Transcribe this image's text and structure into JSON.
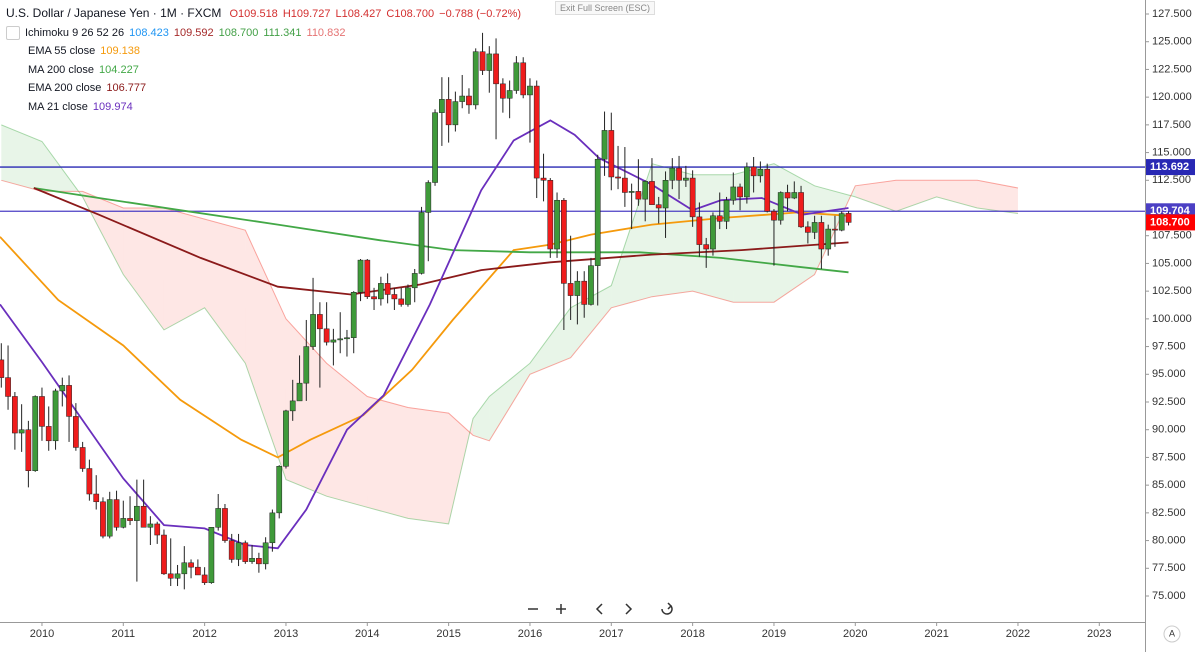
{
  "header": {
    "symbol": "U.S. Dollar / Japanese Yen · 1M · FXCM",
    "ohlc": [
      "O109.518",
      "H109.727",
      "L108.427",
      "C108.700"
    ],
    "change": "−0.788 (−0.72%)",
    "exit": "Exit Full Screen (ESC)",
    "corner": "A"
  },
  "chart_data": {
    "type": "candlestick",
    "up_color": "#3f9a3a",
    "down_color": "#ef1c1c",
    "xlim": [
      2009.484,
      2023.562
    ],
    "xticks": [
      2010,
      2011,
      2012,
      2013,
      2014,
      2015,
      2016,
      2017,
      2018,
      2019,
      2020,
      2021,
      2022,
      2023
    ],
    "ylim": [
      72.655,
      128.763
    ],
    "yticks": [
      {
        "value": 75,
        "label": "75.000"
      },
      {
        "value": 77.5,
        "label": "77.500"
      },
      {
        "value": 80,
        "label": "80.000"
      },
      {
        "value": 82.5,
        "label": "82.500"
      },
      {
        "value": 85,
        "label": "85.000"
      },
      {
        "value": 87.5,
        "label": "87.500"
      },
      {
        "value": 90,
        "label": "90.000"
      },
      {
        "value": 92.5,
        "label": "92.500"
      },
      {
        "value": 95,
        "label": "95.000"
      },
      {
        "value": 97.5,
        "label": "97.500"
      },
      {
        "value": 100,
        "label": "100.000"
      },
      {
        "value": 102.5,
        "label": "102.500"
      },
      {
        "value": 105,
        "label": "105.000"
      },
      {
        "value": 107.5,
        "label": "107.500"
      },
      {
        "value": 110,
        "label": "110.000"
      },
      {
        "value": 112.5,
        "label": "112.500"
      },
      {
        "value": 115,
        "label": "115.000"
      },
      {
        "value": 117.5,
        "label": "117.500"
      },
      {
        "value": 120,
        "label": "120.000"
      },
      {
        "value": 122.5,
        "label": "122.500"
      },
      {
        "value": 125,
        "label": "125.000"
      },
      {
        "value": 127.5,
        "label": "127.500"
      }
    ],
    "grid": false,
    "candles": [
      [
        2009.5,
        96.3,
        97.8,
        93.8,
        94.7
      ],
      [
        2009.583,
        94.7,
        97.6,
        91.8,
        93.0
      ],
      [
        2009.667,
        93.0,
        93.4,
        88.2,
        89.7
      ],
      [
        2009.75,
        89.7,
        92.3,
        88.0,
        90.0
      ],
      [
        2009.833,
        90.0,
        90.8,
        84.8,
        86.3
      ],
      [
        2009.917,
        86.3,
        93.1,
        86.2,
        93.0
      ],
      [
        2010,
        93.0,
        93.8,
        89.0,
        90.3
      ],
      [
        2010.083,
        90.3,
        92.1,
        88.1,
        89.0
      ],
      [
        2010.167,
        89.0,
        93.7,
        88.2,
        93.5
      ],
      [
        2010.25,
        93.5,
        94.7,
        92.1,
        94.0
      ],
      [
        2010.333,
        94.0,
        94.9,
        88.9,
        91.2
      ],
      [
        2010.417,
        91.2,
        92.4,
        88.1,
        88.4
      ],
      [
        2010.5,
        88.4,
        88.9,
        86.2,
        86.5
      ],
      [
        2010.583,
        86.5,
        87.3,
        83.6,
        84.2
      ],
      [
        2010.667,
        84.2,
        85.9,
        82.8,
        83.5
      ],
      [
        2010.75,
        83.5,
        83.9,
        80.2,
        80.4
      ],
      [
        2010.833,
        80.4,
        84.4,
        80.2,
        83.7
      ],
      [
        2010.917,
        83.7,
        84.5,
        80.9,
        81.2
      ],
      [
        2011,
        81.2,
        83.6,
        81.1,
        82.0
      ],
      [
        2011.083,
        82.0,
        84.0,
        81.4,
        81.8
      ],
      [
        2011.167,
        81.8,
        85.5,
        76.3,
        83.1
      ],
      [
        2011.25,
        83.1,
        85.5,
        81.3,
        81.2
      ],
      [
        2011.333,
        81.2,
        82.2,
        79.6,
        81.5
      ],
      [
        2011.417,
        81.5,
        81.7,
        79.7,
        80.5
      ],
      [
        2011.5,
        80.5,
        81.0,
        76.9,
        77.0
      ],
      [
        2011.583,
        77.0,
        80.2,
        75.9,
        76.6
      ],
      [
        2011.667,
        76.6,
        77.8,
        75.9,
        77.0
      ],
      [
        2011.75,
        77.0,
        79.5,
        75.6,
        78.0
      ],
      [
        2011.833,
        78.0,
        78.3,
        76.6,
        77.6
      ],
      [
        2011.917,
        77.6,
        78.3,
        76.9,
        76.9
      ],
      [
        2012,
        76.9,
        77.6,
        76.0,
        76.2
      ],
      [
        2012.083,
        76.2,
        81.2,
        76.1,
        81.2
      ],
      [
        2012.167,
        81.2,
        84.2,
        80.9,
        82.9
      ],
      [
        2012.25,
        82.9,
        83.3,
        79.8,
        80.0
      ],
      [
        2012.333,
        80.0,
        80.6,
        78.0,
        78.3
      ],
      [
        2012.417,
        78.3,
        80.6,
        77.7,
        79.8
      ],
      [
        2012.5,
        79.8,
        80.0,
        77.9,
        78.1
      ],
      [
        2012.583,
        78.1,
        79.6,
        77.9,
        78.4
      ],
      [
        2012.667,
        78.4,
        78.9,
        77.1,
        77.9
      ],
      [
        2012.75,
        77.9,
        80.3,
        77.4,
        79.8
      ],
      [
        2012.833,
        79.8,
        82.8,
        79.0,
        82.5
      ],
      [
        2012.917,
        82.5,
        86.8,
        82.0,
        86.7
      ],
      [
        2013,
        86.7,
        91.8,
        86.5,
        91.7
      ],
      [
        2013.083,
        91.7,
        94.5,
        90.8,
        92.6
      ],
      [
        2013.167,
        92.6,
        96.7,
        92.6,
        94.2
      ],
      [
        2013.25,
        94.2,
        99.9,
        92.6,
        97.5
      ],
      [
        2013.333,
        97.5,
        103.7,
        97.2,
        100.4
      ],
      [
        2013.417,
        100.4,
        101.5,
        93.8,
        99.1
      ],
      [
        2013.5,
        99.1,
        101.5,
        97.6,
        97.9
      ],
      [
        2013.583,
        97.9,
        99.1,
        95.8,
        98.1
      ],
      [
        2013.667,
        98.1,
        100.6,
        96.9,
        98.2
      ],
      [
        2013.75,
        98.2,
        99.0,
        96.6,
        98.3
      ],
      [
        2013.833,
        98.3,
        102.5,
        96.9,
        102.4
      ],
      [
        2013.917,
        102.4,
        105.4,
        101.6,
        105.3
      ],
      [
        2014,
        105.3,
        105.4,
        101.8,
        102.0
      ],
      [
        2014.083,
        102.0,
        102.8,
        100.8,
        101.8
      ],
      [
        2014.167,
        101.8,
        103.8,
        101.2,
        103.2
      ],
      [
        2014.25,
        103.2,
        104.1,
        101.4,
        102.2
      ],
      [
        2014.333,
        102.2,
        102.8,
        100.8,
        101.8
      ],
      [
        2014.417,
        101.8,
        102.8,
        101.1,
        101.3
      ],
      [
        2014.5,
        101.3,
        103.1,
        101.1,
        102.8
      ],
      [
        2014.583,
        102.8,
        104.5,
        101.5,
        104.1
      ],
      [
        2014.667,
        104.1,
        110.1,
        104.0,
        109.6
      ],
      [
        2014.75,
        109.6,
        112.5,
        105.2,
        112.3
      ],
      [
        2014.833,
        112.3,
        118.9,
        112.0,
        118.6
      ],
      [
        2014.917,
        118.6,
        121.8,
        115.6,
        119.8
      ],
      [
        2015,
        119.8,
        121.8,
        115.9,
        117.5
      ],
      [
        2015.083,
        117.5,
        120.5,
        116.9,
        119.6
      ],
      [
        2015.167,
        119.6,
        122.0,
        119.0,
        120.1
      ],
      [
        2015.25,
        120.1,
        120.8,
        118.5,
        119.3
      ],
      [
        2015.333,
        119.3,
        124.4,
        118.9,
        124.1
      ],
      [
        2015.417,
        124.1,
        125.8,
        122.0,
        122.4
      ],
      [
        2015.5,
        122.4,
        124.6,
        120.4,
        123.9
      ],
      [
        2015.583,
        123.9,
        125.3,
        116.2,
        121.2
      ],
      [
        2015.667,
        121.2,
        121.7,
        118.6,
        119.9
      ],
      [
        2015.75,
        119.9,
        121.5,
        118.1,
        120.6
      ],
      [
        2015.833,
        120.6,
        123.7,
        120.3,
        123.1
      ],
      [
        2015.917,
        123.1,
        123.6,
        119.9,
        120.2
      ],
      [
        2016,
        120.2,
        121.7,
        115.9,
        121.0
      ],
      [
        2016.083,
        121.0,
        121.5,
        110.9,
        112.7
      ],
      [
        2016.167,
        112.7,
        114.9,
        110.6,
        112.5
      ],
      [
        2016.25,
        112.5,
        112.7,
        105.5,
        106.3
      ],
      [
        2016.333,
        106.3,
        111.4,
        105.5,
        110.7
      ],
      [
        2016.417,
        110.7,
        110.9,
        99.0,
        103.2
      ],
      [
        2016.5,
        103.2,
        107.5,
        99.9,
        102.1
      ],
      [
        2016.583,
        102.1,
        104.3,
        99.5,
        103.4
      ],
      [
        2016.667,
        103.4,
        104.3,
        100.1,
        101.3
      ],
      [
        2016.75,
        101.3,
        105.5,
        101.2,
        104.8
      ],
      [
        2016.833,
        104.8,
        114.8,
        101.2,
        114.4
      ],
      [
        2016.917,
        114.4,
        118.7,
        112.9,
        117.0
      ],
      [
        2017,
        117.0,
        118.6,
        111.6,
        112.8
      ],
      [
        2017.083,
        112.8,
        115.6,
        111.7,
        112.7
      ],
      [
        2017.167,
        112.7,
        115.5,
        110.1,
        111.4
      ],
      [
        2017.25,
        111.4,
        112.2,
        108.1,
        111.5
      ],
      [
        2017.333,
        111.5,
        114.4,
        110.2,
        110.8
      ],
      [
        2017.417,
        110.8,
        112.5,
        108.8,
        112.4
      ],
      [
        2017.5,
        112.4,
        114.5,
        110.6,
        110.3
      ],
      [
        2017.583,
        110.3,
        111.0,
        108.6,
        110.0
      ],
      [
        2017.667,
        110.0,
        113.3,
        107.3,
        112.5
      ],
      [
        2017.75,
        112.5,
        114.5,
        111.7,
        113.6
      ],
      [
        2017.833,
        113.6,
        114.7,
        110.8,
        112.5
      ],
      [
        2017.917,
        112.5,
        113.8,
        111.9,
        112.7
      ],
      [
        2018,
        112.7,
        113.4,
        108.3,
        109.2
      ],
      [
        2018.083,
        109.2,
        110.5,
        105.6,
        106.7
      ],
      [
        2018.167,
        106.7,
        107.3,
        104.6,
        106.3
      ],
      [
        2018.25,
        106.3,
        109.6,
        105.7,
        109.3
      ],
      [
        2018.333,
        109.3,
        111.4,
        108.1,
        108.8
      ],
      [
        2018.417,
        108.8,
        111.0,
        108.1,
        110.7
      ],
      [
        2018.5,
        110.7,
        113.2,
        110.3,
        111.9
      ],
      [
        2018.583,
        111.9,
        112.2,
        109.8,
        111.0
      ],
      [
        2018.667,
        111.0,
        114.1,
        110.4,
        113.7
      ],
      [
        2018.75,
        113.7,
        114.6,
        111.4,
        112.9
      ],
      [
        2018.833,
        112.9,
        114.2,
        112.3,
        113.5
      ],
      [
        2018.917,
        113.5,
        114.0,
        109.6,
        109.7
      ],
      [
        2019,
        109.7,
        109.9,
        104.8,
        108.9
      ],
      [
        2019.083,
        108.9,
        111.5,
        108.5,
        111.4
      ],
      [
        2019.167,
        111.4,
        112.1,
        109.7,
        110.9
      ],
      [
        2019.25,
        110.9,
        112.4,
        110.8,
        111.4
      ],
      [
        2019.333,
        111.4,
        112.0,
        108.2,
        108.3
      ],
      [
        2019.417,
        108.3,
        108.8,
        106.8,
        107.8
      ],
      [
        2019.5,
        107.8,
        109.3,
        107.2,
        108.7
      ],
      [
        2019.583,
        108.7,
        109.3,
        104.5,
        106.3
      ],
      [
        2019.667,
        106.3,
        108.5,
        105.7,
        108.1
      ],
      [
        2019.75,
        108.1,
        109.3,
        106.5,
        108.0
      ],
      [
        2019.833,
        108.0,
        109.7,
        107.9,
        109.5
      ],
      [
        2019.917,
        109.518,
        109.727,
        108.427,
        108.7
      ]
    ],
    "ichimoku": {
      "name": "Ichimoku 9 26 52 26",
      "legend_values": [
        "108.423",
        "109.592",
        "108.700",
        "111.341",
        "110.832"
      ],
      "legend_colors": [
        "#2196f3",
        "#a52a2a",
        "#43a047",
        "#43a047",
        "#e57373"
      ],
      "x": [
        2009.5,
        2010,
        2010.5,
        2011,
        2011.5,
        2012,
        2012.5,
        2013,
        2013.5,
        2014,
        2014.5,
        2015,
        2015.3,
        2015.5,
        2016,
        2016.5,
        2017,
        2017.5,
        2018,
        2018.5,
        2019,
        2019.5,
        2020,
        2020.5,
        2021,
        2021.5,
        2022
      ],
      "span_a": [
        117.5,
        116,
        111,
        104,
        99,
        101,
        96,
        85.5,
        84,
        83,
        82,
        81.5,
        91,
        93,
        96,
        101,
        103,
        114,
        113,
        113,
        114,
        112,
        111,
        109.7,
        111,
        110,
        109.5
      ],
      "span_b": [
        112.5,
        111.5,
        111.5,
        110,
        110,
        109,
        108,
        100,
        96,
        93,
        92,
        91.5,
        89.5,
        89,
        95,
        96.5,
        101,
        102,
        102.5,
        101.5,
        101.5,
        104,
        112,
        112.5,
        112.5,
        112.5,
        111.8
      ],
      "colors": [
        "#4caf50",
        "#f44336"
      ]
    },
    "series": [
      {
        "name": "EMA 55 close",
        "legend_value": "109.138",
        "color": "#f59a0c",
        "x": [
          2009.484,
          2010.2,
          2011,
          2011.7,
          2012.45,
          2012.9,
          2013.3,
          2013.95,
          2014.55,
          2015.05,
          2015.8,
          2016.25,
          2016.75,
          2017.5,
          2018.35,
          2019.3,
          2019.917
        ],
        "values": [
          107.4,
          101.7,
          97.6,
          92.7,
          89.1,
          87.5,
          89.1,
          91.3,
          95.4,
          99.9,
          106.2,
          106.7,
          107.6,
          108.5,
          109.1,
          109.6,
          109.3
        ]
      },
      {
        "name": "MA 200 close",
        "legend_value": "104.227",
        "color": "#43a847",
        "x": [
          2009.9,
          2010.7,
          2011.7,
          2012.9,
          2014.15,
          2015.05,
          2016,
          2017.35,
          2018.35,
          2019.3,
          2019.917
        ],
        "values": [
          111.8,
          110.9,
          109.8,
          108.5,
          107.1,
          106.2,
          106,
          106,
          105.5,
          104.7,
          104.2
        ]
      },
      {
        "name": "EMA 200 close",
        "legend_value": "106.777",
        "color": "#8b1a1a",
        "x": [
          2009.9,
          2010.7,
          2011.95,
          2012.9,
          2013.8,
          2014.65,
          2015.4,
          2016.25,
          2017.5,
          2018.6,
          2019.917
        ],
        "values": [
          111.8,
          109.4,
          105.5,
          102.9,
          102.2,
          103.1,
          104.4,
          105.1,
          105.8,
          106.2,
          106.9
        ]
      },
      {
        "name": "MA 21 close",
        "legend_value": "109.974",
        "color": "#6a2fbd",
        "x": [
          2009.484,
          2010,
          2011,
          2011.5,
          2012,
          2012.5,
          2012.9,
          2013.25,
          2013.75,
          2014.2,
          2014.77,
          2015.4,
          2015.8,
          2016.25,
          2016.55,
          2016.85,
          2017.5,
          2018,
          2018.35,
          2018.85,
          2019.35,
          2019.917
        ],
        "values": [
          101.3,
          96.1,
          85.6,
          81.4,
          81.1,
          79.6,
          79.3,
          82.8,
          90,
          93.1,
          101.3,
          111.6,
          116.1,
          117.9,
          116.6,
          114.5,
          112.1,
          109.8,
          110.7,
          110.9,
          109.4,
          110
        ]
      }
    ],
    "price_lines": [
      {
        "value": 113.692,
        "color": "#2828b4"
      },
      {
        "value": 109.704,
        "color": "#4b3fc4"
      }
    ],
    "last_price": {
      "value": 108.7,
      "label": "108.700",
      "color": "#ff0000"
    }
  }
}
